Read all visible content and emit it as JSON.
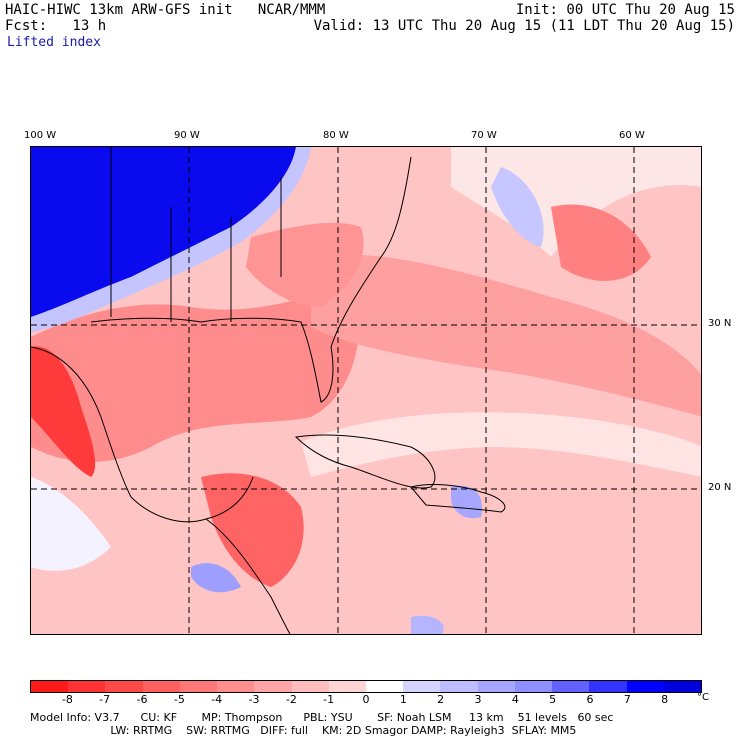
{
  "header": {
    "line1_left": "HAIC-HIWC 13km ARW-GFS init   NCAR/MMM",
    "line1_right": "Init: 00 UTC Thu 20 Aug 15",
    "line2_left": "Fcst:   13 h",
    "line2_right": "Valid: 13 UTC Thu 20 Aug 15 (11 LDT Thu 20 Aug 15)",
    "field": "Lifted index"
  },
  "axes": {
    "lon_labels": [
      "100 W",
      "90 W",
      "80 W",
      "70 W",
      "60 W"
    ],
    "lat_labels": [
      "30 N",
      "20 N"
    ]
  },
  "colorbar": {
    "ticks": [
      "-8",
      "-7",
      "-6",
      "-5",
      "-4",
      "-3",
      "-2",
      "-1",
      "0",
      "1",
      "2",
      "3",
      "4",
      "5",
      "6",
      "7",
      "8"
    ],
    "unit": "°C",
    "colors": [
      "#ff1a1a",
      "#ff3333",
      "#ff4a4a",
      "#ff6161",
      "#ff7878",
      "#ff8f8f",
      "#ffa6a6",
      "#ffbdbd",
      "#ffd4d4",
      "#ffffff",
      "#d4d4ff",
      "#bdbdff",
      "#a6a6ff",
      "#8f8fff",
      "#6161ff",
      "#3333ff",
      "#0000ff",
      "#0000dd"
    ]
  },
  "model_info": {
    "line1": "Model Info: V3.7      CU: KF       MP: Thompson      PBL: YSU       SF: Noah LSM     13 km    51 levels   60 sec",
    "line2": "                       LW: RRTMG    SW: RRTMG   DIFF: full    KM: 2D Smagor DAMP: Rayleigh3  SFLAY: MM5"
  }
}
